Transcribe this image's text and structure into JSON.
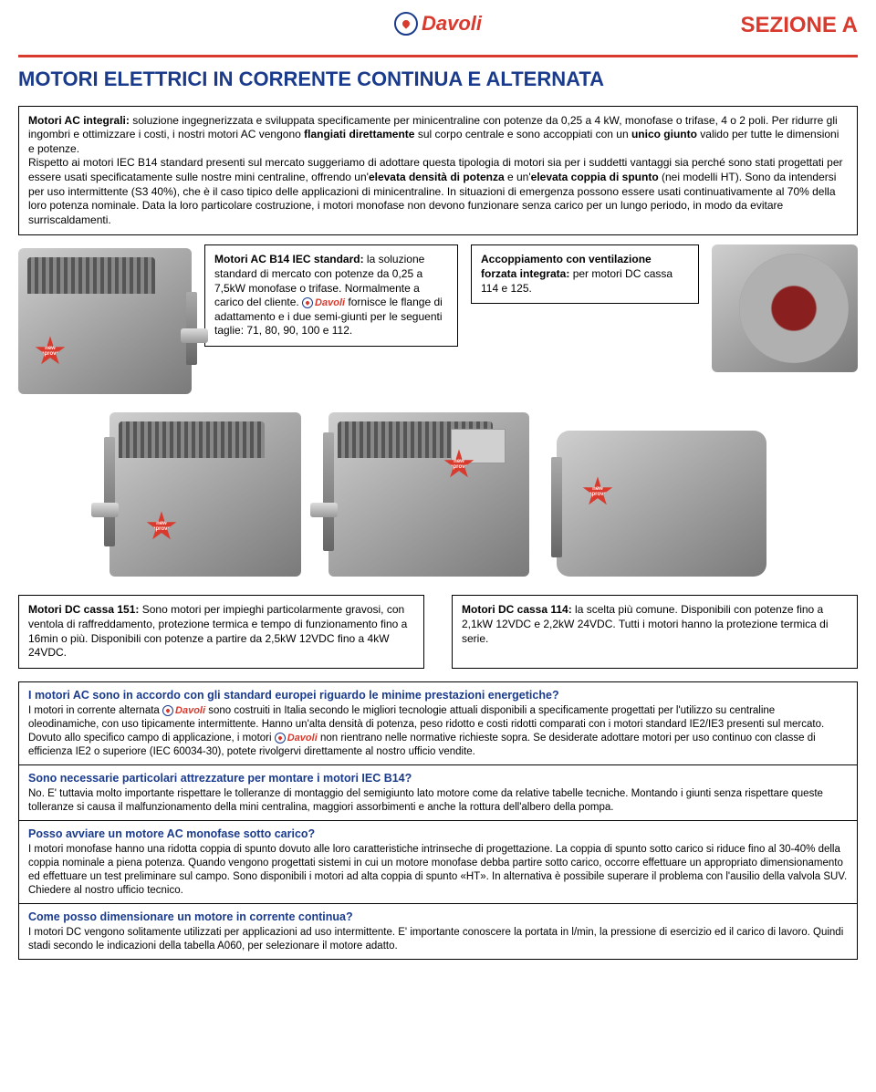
{
  "header": {
    "brand": "Davoli",
    "section_label": "SEZIONE A"
  },
  "title": "MOTORI ELETTRICI IN CORRENTE CONTINUA E ALTERNATA",
  "main_box": {
    "lead_bold": "Motori AC integrali:",
    "lead_rest": " soluzione ingegnerizzata e sviluppata specificamente per minicentraline con potenze da 0,25 a 4 kW, monofase o trifase, 4 o 2 poli. Per ridurre gli ingombri e ottimizzare i costi, i nostri motori AC vengono ",
    "b1": "flangiati direttamente",
    "t1": " sul corpo centrale e sono accoppiati con un ",
    "b2": "unico giunto",
    "t2": " valido per tutte le dimensioni e potenze.",
    "para2a": "Rispetto ai motori IEC B14 standard presenti sul mercato suggeriamo di adottare questa tipologia di motori sia per i suddetti vantaggi sia perché sono stati progettati per essere usati specificatamente sulle nostre mini centraline, offrendo un'",
    "b3": "elevata densità di potenza",
    "t3": " e un'",
    "b4": "elevata coppia di spunto",
    "t4": " (nei modelli HT). Sono da intendersi per uso intermittente (S3 40%), che è il caso tipico delle applicazioni di minicentraline. In situazioni di emergenza possono essere usati continuativamente al 70% della loro potenza nominale. Data la loro particolare costruzione, i motori monofase non devono funzionare senza carico per un lungo periodo, in modo da evitare surriscaldamenti."
  },
  "box_b14": {
    "lead_bold": "Motori AC B14 IEC standard:",
    "text1": " la soluzione standard di mercato con potenze da 0,25 a 7,5kW monofase o trifase. Normalmente a carico del cliente. ",
    "text2": " fornisce le flange di adattamento e i due semi-giunti per le seguenti taglie: 71, 80, 90, 100 e 112."
  },
  "box_vent": {
    "lead_bold": "Accoppiamento con ventilazione forzata integrata:",
    "text": " per motori DC cassa 114 e 125."
  },
  "box_dc151": {
    "lead_bold": "Motori DC cassa 151:",
    "text": " Sono motori per impieghi particolarmente gravosi, con ventola di raffreddamento, protezione termica e tempo di funzionamento fino a 16min o più. Disponibili con potenze a partire da 2,5kW 12VDC fino a 4kW 24VDC."
  },
  "box_dc114": {
    "lead_bold": "Motori DC cassa 114:",
    "text": " la scelta più comune. Disponibili con potenze fino a 2,1kW 12VDC e 2,2kW 24VDC. Tutti i motori hanno la protezione termica di serie."
  },
  "star_label": "new improved",
  "faq": [
    {
      "q": "I motori AC sono in accordo con gli standard europei riguardo le minime prestazioni energetiche?",
      "a1": "I motori in corrente alternata ",
      "a2": " sono costruiti in Italia secondo le migliori tecnologie attuali disponibili a specificamente progettati per l'utilizzo su centraline oleodinamiche, con uso tipicamente intermittente. Hanno un'alta densità di potenza, peso ridotto e costi ridotti comparati con i motori standard IE2/IE3 presenti sul mercato. Dovuto allo specifico campo di applicazione, i motori ",
      "a3": " non rientrano nelle normative richieste sopra. Se desiderate adottare motori per uso continuo con classe di efficienza IE2 o superiore (IEC 60034-30), potete rivolgervi direttamente al nostro ufficio vendite.",
      "logos": 2
    },
    {
      "q": "Sono necessarie particolari attrezzature per montare i motori IEC B14?",
      "a": "No. E' tuttavia molto importante rispettare le tolleranze di montaggio del semigiunto lato motore come da relative tabelle tecniche. Montando i giunti senza rispettare queste tolleranze si causa il malfunzionamento della mini centralina, maggiori assorbimenti e anche la rottura dell'albero della pompa."
    },
    {
      "q": "Posso avviare un motore AC monofase sotto carico?",
      "a": "I motori monofase hanno una ridotta coppia di spunto dovuto alle loro caratteristiche intrinseche di progettazione. La coppia di spunto sotto carico si riduce fino al 30-40% della coppia nominale a piena potenza. Quando vengono progettati sistemi in cui un motore monofase debba partire sotto carico, occorre effettuare un appropriato dimensionamento ed effettuare un test preliminare sul campo. Sono disponibili i motori ad alta coppia di spunto «HT». In alternativa è possibile superare il problema con l'ausilio della valvola SUV. Chiedere al nostro ufficio tecnico."
    },
    {
      "q": "Come posso dimensionare un motore in corrente continua?",
      "a": "I motori DC vengono solitamente utilizzati per applicazioni ad uso intermittente. E' importante conoscere la portata in l/min, la pressione di esercizio ed il carico di lavoro. Quindi stadi secondo le indicazioni della tabella A060, per selezionare il motore adatto."
    }
  ]
}
